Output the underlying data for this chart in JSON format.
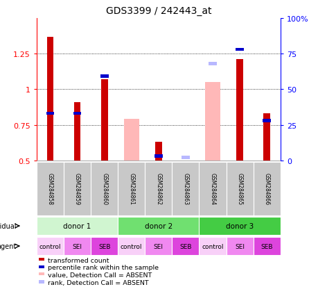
{
  "title": "GDS3399 / 242443_at",
  "samples": [
    "GSM284858",
    "GSM284859",
    "GSM284860",
    "GSM284861",
    "GSM284862",
    "GSM284863",
    "GSM284864",
    "GSM284865",
    "GSM284866"
  ],
  "ylim_left": [
    0.5,
    1.5
  ],
  "ylim_right": [
    0,
    100
  ],
  "yticks_left": [
    0.5,
    0.75,
    1.0,
    1.25
  ],
  "yticks_right": [
    0,
    25,
    50,
    75,
    100
  ],
  "ytick_labels_left": [
    "0.5",
    "0.75",
    "1",
    "1.25"
  ],
  "ytick_labels_right": [
    "0",
    "25",
    "50",
    "75",
    "100%"
  ],
  "red_bars": [
    1.37,
    0.91,
    1.07,
    null,
    0.63,
    null,
    null,
    1.21,
    0.83
  ],
  "blue_bars": [
    0.82,
    0.82,
    1.08,
    null,
    0.52,
    null,
    null,
    1.27,
    0.77
  ],
  "pink_bars": [
    null,
    null,
    null,
    0.79,
    null,
    null,
    1.05,
    null,
    null
  ],
  "lightblue_bars": [
    null,
    null,
    null,
    null,
    null,
    0.52,
    1.18,
    null,
    null
  ],
  "donors": [
    {
      "label": "donor 1",
      "start": 0,
      "end": 3,
      "color": "#d0f5d0"
    },
    {
      "label": "donor 2",
      "start": 3,
      "end": 6,
      "color": "#70e070"
    },
    {
      "label": "donor 3",
      "start": 6,
      "end": 9,
      "color": "#44cc44"
    }
  ],
  "agents": [
    "control",
    "SEI",
    "SEB",
    "control",
    "SEI",
    "SEB",
    "control",
    "SEI",
    "SEB"
  ],
  "agent_colors": [
    "#f8d0f8",
    "#f088f0",
    "#dd44dd",
    "#f8d0f8",
    "#f088f0",
    "#dd44dd",
    "#f8d0f8",
    "#f088f0",
    "#dd44dd"
  ],
  "red_color": "#cc0000",
  "blue_color": "#0000cc",
  "pink_color": "#ffb8b8",
  "lightblue_color": "#b8b8ff",
  "bg_color": "#ffffff",
  "sample_box_color": "#c8c8c8"
}
